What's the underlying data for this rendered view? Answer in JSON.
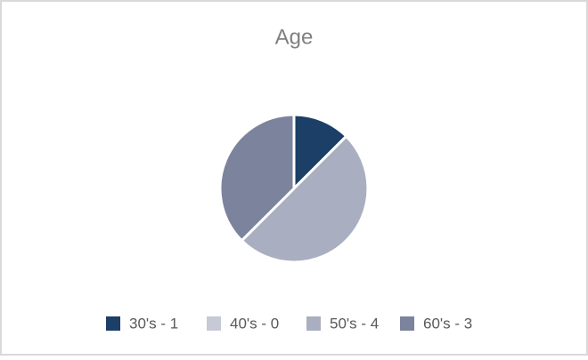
{
  "chart_data": {
    "type": "pie",
    "title": "Age",
    "categories": [
      "30's - 1",
      "40's - 0",
      "50's - 4",
      "60's - 3"
    ],
    "values": [
      1,
      0,
      4,
      3
    ],
    "colors": [
      "#1b3f66",
      "#c6cad7",
      "#a9aec1",
      "#7c839d"
    ]
  }
}
